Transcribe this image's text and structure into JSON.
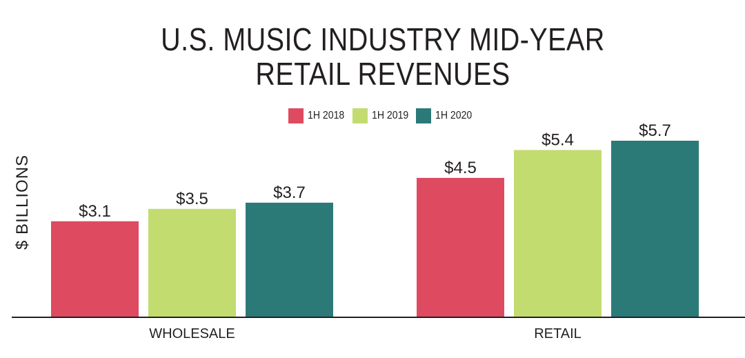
{
  "chart_data": {
    "type": "bar",
    "title_lines": [
      "U.S. MUSIC INDUSTRY MID-YEAR",
      "RETAIL REVENUES"
    ],
    "ylabel": "$ BILLIONS",
    "xlabel": "",
    "categories": [
      "WHOLESALE",
      "RETAIL"
    ],
    "series": [
      {
        "name": "1H 2018",
        "color": "#de4a60",
        "values": [
          3.1,
          4.5
        ],
        "labels": [
          "$3.1",
          "$4.5"
        ]
      },
      {
        "name": "1H 2019",
        "color": "#c3dc70",
        "values": [
          3.5,
          5.4
        ],
        "labels": [
          "$3.5",
          "$5.4"
        ]
      },
      {
        "name": "1H 2020",
        "color": "#2b7a78",
        "values": [
          3.7,
          5.7
        ],
        "labels": [
          "$3.7",
          "$5.7"
        ]
      }
    ],
    "ylim": [
      0,
      5.7
    ],
    "grid": false,
    "legend_position": "top-center"
  }
}
